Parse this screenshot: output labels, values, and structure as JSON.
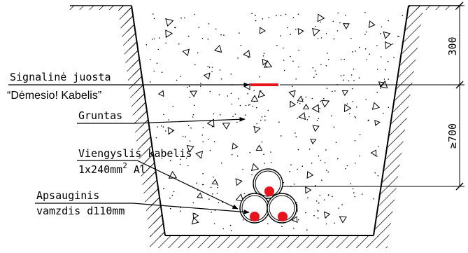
{
  "labels": {
    "signal_tape_line1": "Signalinė juosta",
    "signal_tape_line2": "“Dėmesio! Kabelis”",
    "soil": "Gruntas",
    "cable_line1": "Viengyslis kabelis",
    "cable_line2_main": "1x240mm",
    "cable_line2_sup": "2",
    "cable_line2_tail": " Al",
    "pipe_line1": "Apsauginis",
    "pipe_line2": "vamzdis d110mm"
  },
  "dimensions": {
    "top_depth": "300",
    "cable_depth": "≥700"
  },
  "colors": {
    "signal_tape": "#e8141b",
    "cable_core": "#e8141b",
    "line": "#000000"
  }
}
